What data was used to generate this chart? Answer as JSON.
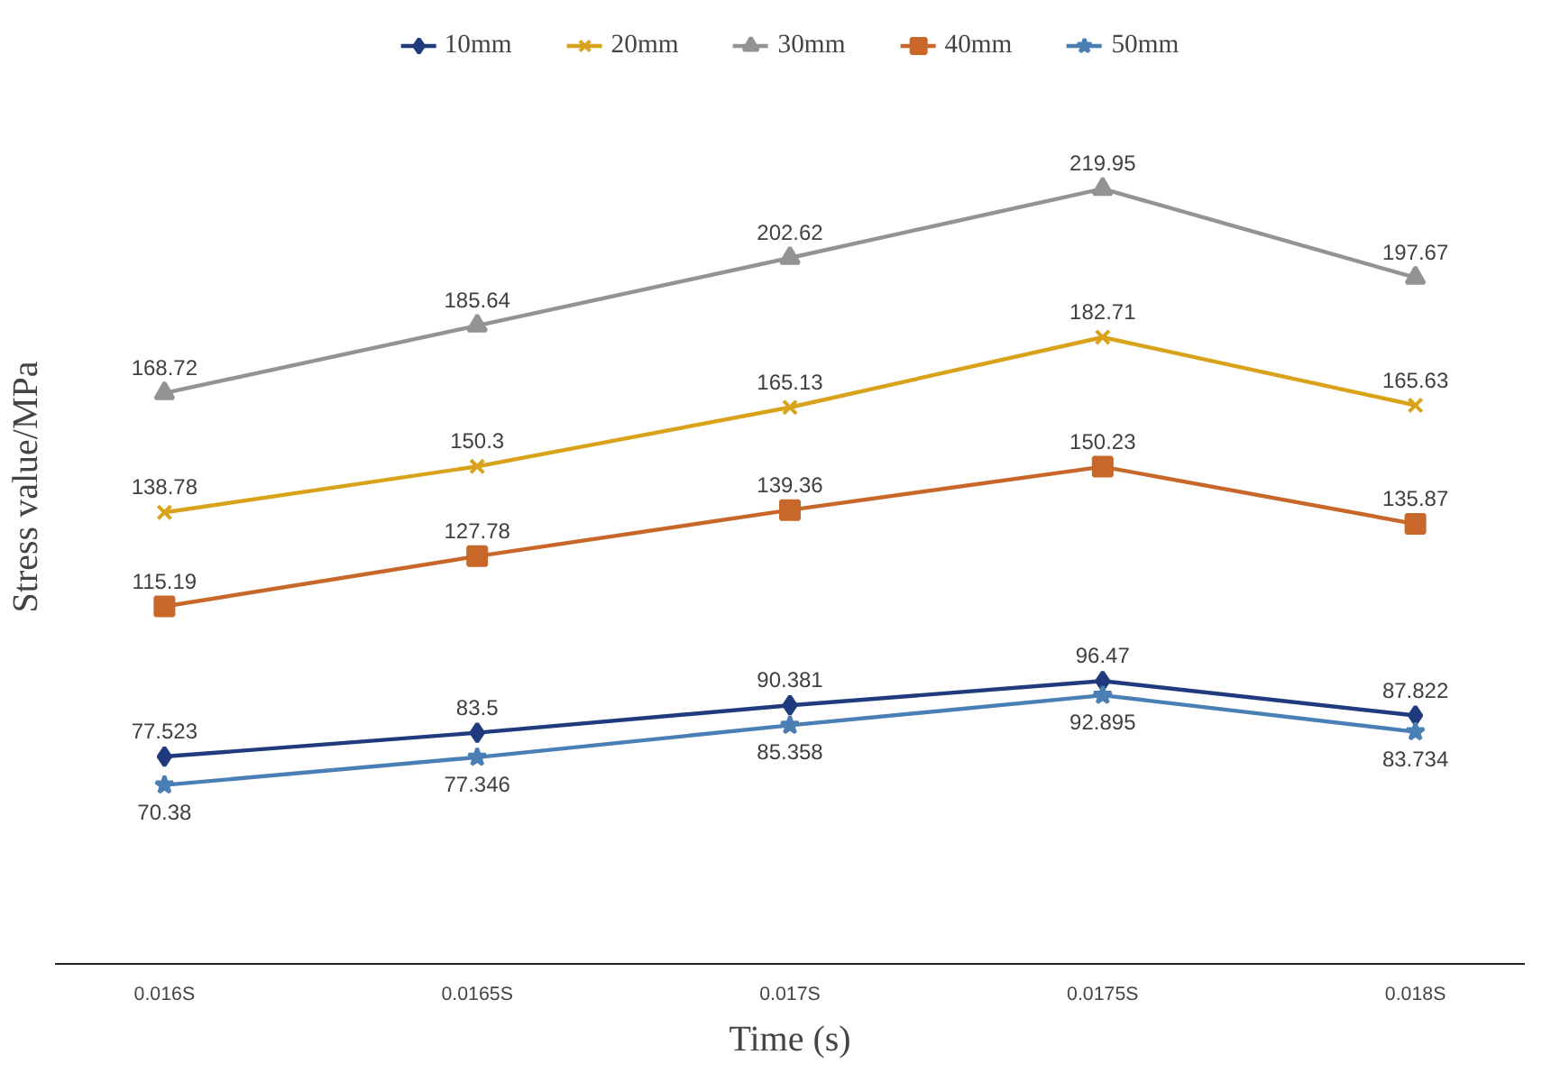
{
  "chart_data": {
    "type": "line",
    "xlabel": "Time (s)",
    "ylabel": "Stress value/MPa",
    "categories": [
      "0.016S",
      "0.0165S",
      "0.017S",
      "0.0175S",
      "0.018S"
    ],
    "series": [
      {
        "name": "10mm",
        "color": "#1f3b7d",
        "marker": "diamond",
        "values": [
          77.523,
          83.5,
          90.381,
          96.47,
          87.822
        ]
      },
      {
        "name": "20mm",
        "color": "#d9a21b",
        "marker": "cross",
        "values": [
          138.78,
          150.3,
          165.13,
          182.71,
          165.63
        ]
      },
      {
        "name": "30mm",
        "color": "#939393",
        "marker": "triangle",
        "values": [
          168.72,
          185.64,
          202.62,
          219.95,
          197.67
        ]
      },
      {
        "name": "40mm",
        "color": "#c8672a",
        "marker": "square",
        "values": [
          115.19,
          127.78,
          139.36,
          150.23,
          135.87
        ]
      },
      {
        "name": "50mm",
        "color": "#4a7fb5",
        "marker": "star",
        "values": [
          70.38,
          77.346,
          85.358,
          92.895,
          83.734
        ]
      }
    ],
    "tick_labels": "x",
    "data_labels": true,
    "legend": "top",
    "grid": false,
    "line_style": "solid"
  }
}
